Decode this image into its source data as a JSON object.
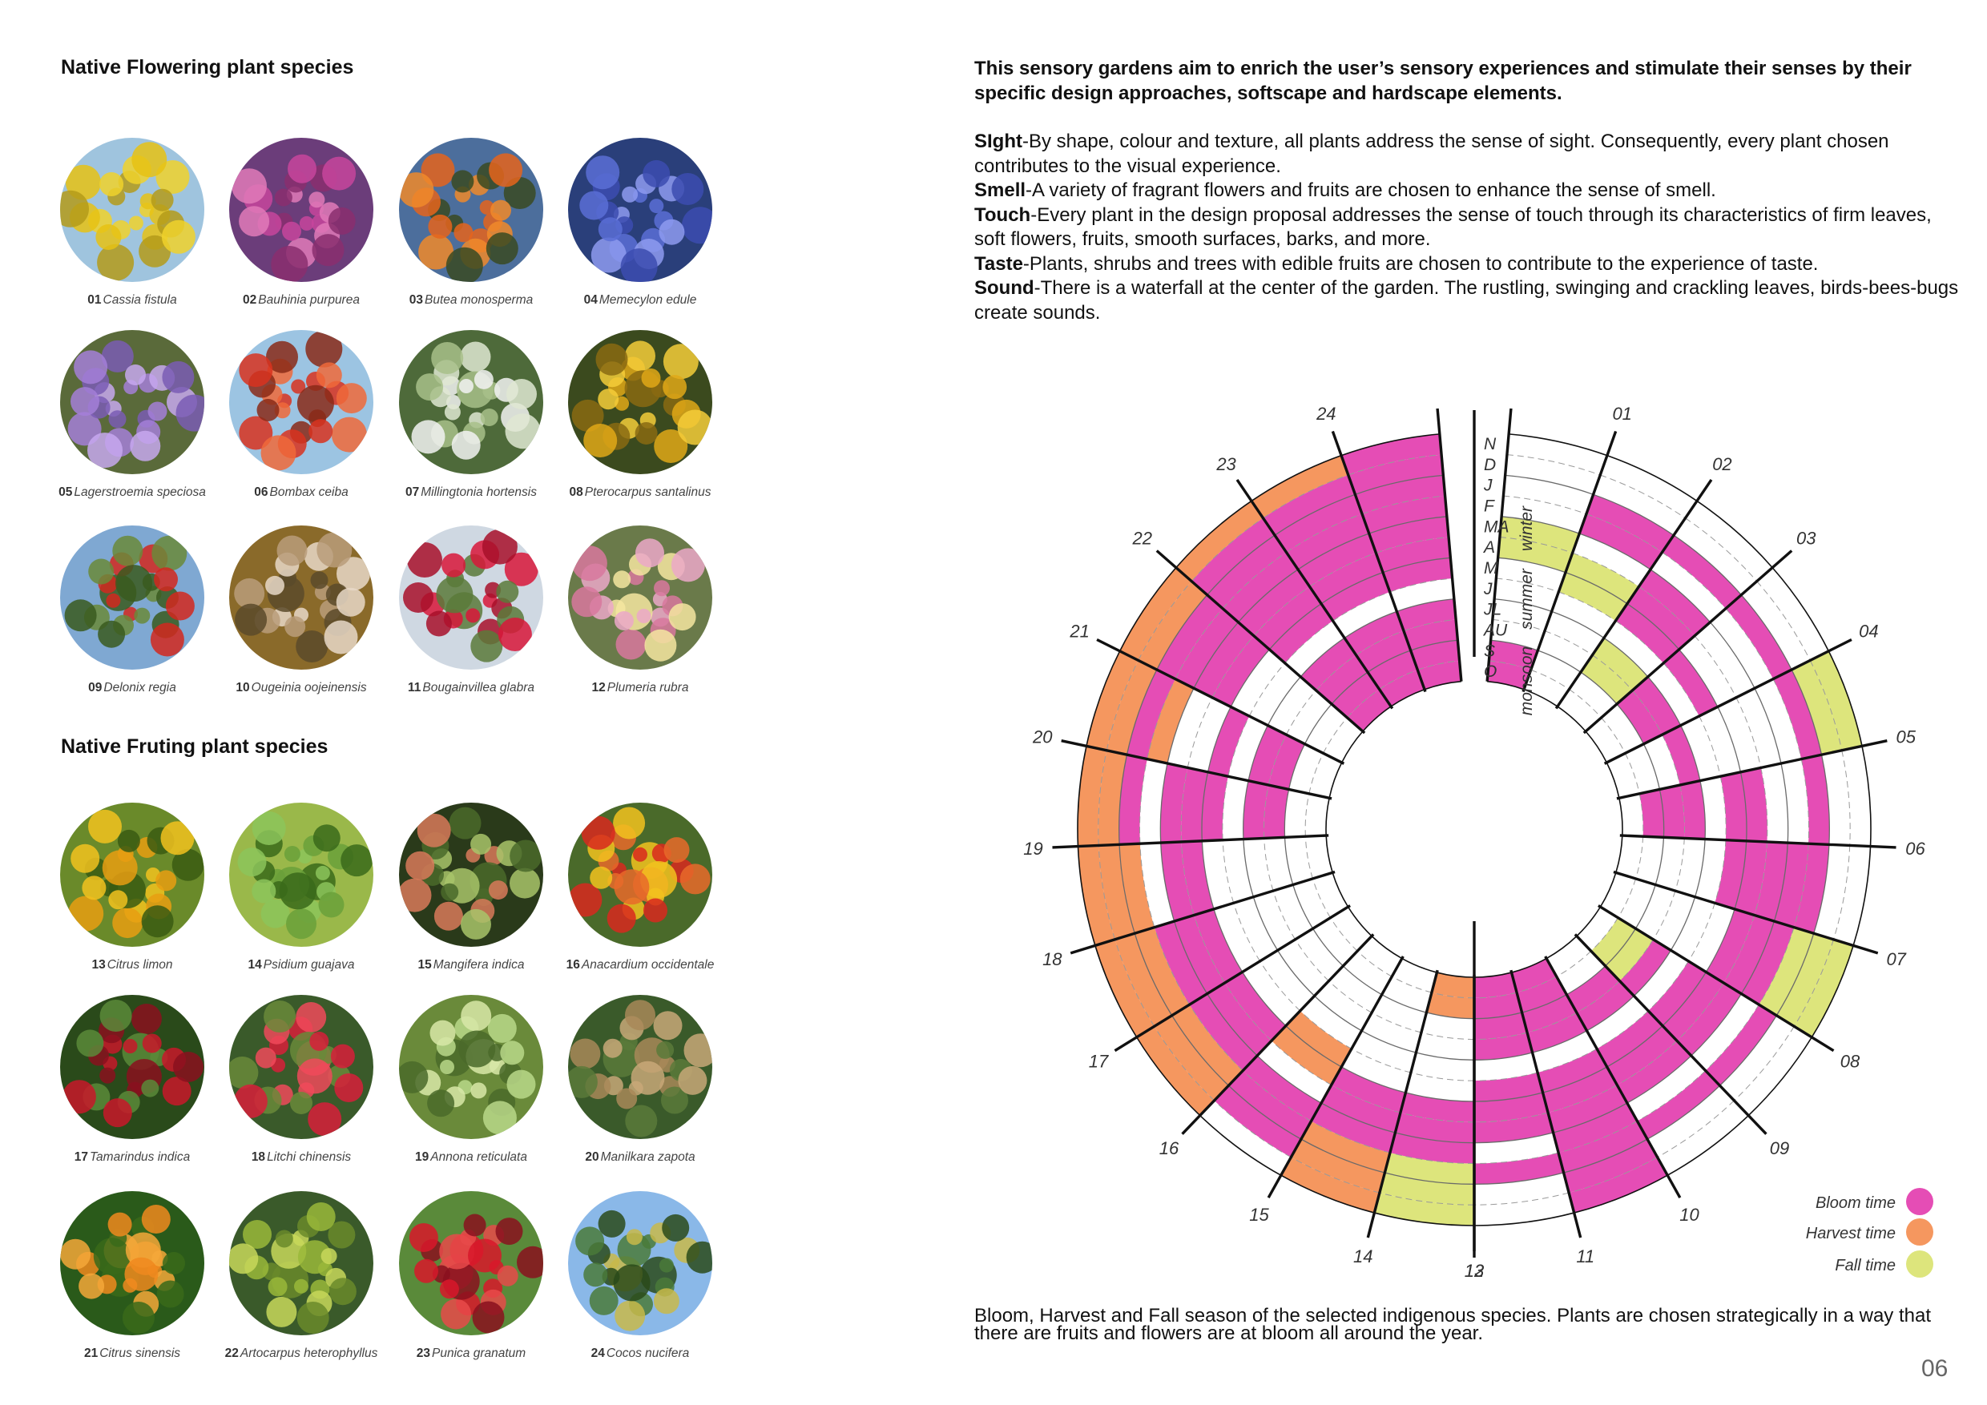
{
  "left": {
    "flowering_title": "Native Flowering plant species",
    "fruiting_title": "Native Fruting plant species",
    "flowering": [
      {
        "num": "01",
        "name": "Cassia fistula"
      },
      {
        "num": "02",
        "name": "Bauhinia purpurea"
      },
      {
        "num": "03",
        "name": "Butea monosperma"
      },
      {
        "num": "04",
        "name": "Memecylon edule"
      },
      {
        "num": "05",
        "name": "Lagerstroemia speciosa"
      },
      {
        "num": "06",
        "name": "Bombax ceiba"
      },
      {
        "num": "07",
        "name": "Millingtonia hortensis"
      },
      {
        "num": "08",
        "name": "Pterocarpus santalinus"
      },
      {
        "num": "09",
        "name": "Delonix regia"
      },
      {
        "num": "10",
        "name": "Ougeinia oojeinensis"
      },
      {
        "num": "11",
        "name": "Bougainvillea glabra"
      },
      {
        "num": "12",
        "name": "Plumeria rubra"
      }
    ],
    "fruiting": [
      {
        "num": "13",
        "name": "Citrus limon"
      },
      {
        "num": "14",
        "name": "Psidium guajava"
      },
      {
        "num": "15",
        "name": "Mangifera indica"
      },
      {
        "num": "16",
        "name": "Anacardium occidentale"
      },
      {
        "num": "17",
        "name": "Tamarindus indica"
      },
      {
        "num": "18",
        "name": "Litchi chinensis"
      },
      {
        "num": "19",
        "name": "Annona reticulata"
      },
      {
        "num": "20",
        "name": "Manilkara zapota"
      },
      {
        "num": "21",
        "name": "Citrus sinensis"
      },
      {
        "num": "22",
        "name": "Artocarpus heterophyllus"
      },
      {
        "num": "23",
        "name": "Punica granatum"
      },
      {
        "num": "24",
        "name": "Cocos nucifera"
      }
    ]
  },
  "right": {
    "intro": "This sensory gardens aim to enrich the user’s sensory experiences and stimulate their senses by their specific design approaches, softscape and hardscape elements.",
    "senses": [
      {
        "term": "SIght",
        "text": "-By shape, colour and texture, all plants address the sense of sight. Consequently, every plant chosen contributes to the visual experience."
      },
      {
        "term": "Smell",
        "text": "-A variety of fragrant flowers and fruits are chosen to enhance the sense of smell."
      },
      {
        "term": "Touch",
        "text": "-Every plant in the design proposal addresses the sense of touch through its characteristics of firm leaves, soft flowers, fruits, smooth surfaces, barks, and more."
      },
      {
        "term": "Taste",
        "text": "-Plants, shrubs and trees with edible fruits are chosen to contribute to the experience of taste."
      },
      {
        "term": "Sound",
        "text": "-There is a waterfall at the center of the garden. The rustling, swinging and crackling leaves, birds-bees-bugs create sounds."
      }
    ],
    "caption": "Bloom, Harvest and Fall season of the selected indigenous species. Plants are chosen strategically in a way that there are fruits and flowers are at bloom all around the year.",
    "page_number": "06"
  },
  "chart_data": {
    "type": "radial-calendar",
    "months_outer_to_inner": [
      "N",
      "D",
      "J",
      "F",
      "MA",
      "A",
      "M",
      "J",
      "JL",
      "AU",
      "S",
      "O"
    ],
    "seasons": [
      "winter",
      "summer",
      "monsoon"
    ],
    "legend": [
      {
        "label": "Bloom time",
        "color": "#e54db5"
      },
      {
        "label": "Harvest time",
        "color": "#f5975f"
      },
      {
        "label": "Fall time",
        "color": "#dde57c"
      }
    ],
    "species": [
      {
        "id": "01",
        "bloom": [
          "S",
          "O"
        ],
        "harvest": [],
        "fall": [
          "MA",
          "A"
        ]
      },
      {
        "id": "02",
        "bloom": [
          "J",
          "F"
        ],
        "harvest": [],
        "fall": [
          "A",
          "M"
        ]
      },
      {
        "id": "03",
        "bloom": [
          "MA",
          "A",
          "M",
          "J"
        ],
        "harvest": [],
        "fall": [
          "JL",
          "AU"
        ]
      },
      {
        "id": "04",
        "bloom": [
          "M",
          "J",
          "JL",
          "AU"
        ],
        "harvest": [],
        "fall": []
      },
      {
        "id": "05",
        "bloom": [
          "J",
          "JL"
        ],
        "harvest": [],
        "fall": [
          "N",
          "D",
          "J"
        ]
      },
      {
        "id": "06",
        "bloom": [
          "A",
          "M",
          "J",
          "JL",
          "AU",
          "S"
        ],
        "harvest": [],
        "fall": []
      },
      {
        "id": "07",
        "bloom": [
          "F",
          "MA",
          "A",
          "M",
          "J"
        ],
        "harvest": [],
        "fall": [
          "J",
          "F"
        ]
      },
      {
        "id": "08",
        "bloom": [
          "F",
          "MA",
          "A"
        ],
        "harvest": [],
        "fall": [
          "N",
          "D",
          "J"
        ]
      },
      {
        "id": "09",
        "bloom": [
          "MA",
          "A",
          "M",
          "J",
          "JL"
        ],
        "harvest": [],
        "fall": [
          "AU",
          "S"
        ]
      },
      {
        "id": "10",
        "bloom": [
          "MA",
          "A",
          "M",
          "J",
          "JL",
          "AU"
        ],
        "harvest": [],
        "fall": []
      },
      {
        "id": "11",
        "bloom": [
          "N",
          "D",
          "J",
          "F",
          "MA",
          "A",
          "M",
          "J",
          "JL",
          "AU",
          "S",
          "O"
        ],
        "harvest": [],
        "fall": []
      },
      {
        "id": "12",
        "bloom": [
          "MA",
          "A",
          "M",
          "J",
          "JL",
          "AU",
          "S",
          "O"
        ],
        "harvest": [],
        "fall": []
      },
      {
        "id": "13",
        "bloom": [
          "F",
          "MA",
          "A"
        ],
        "harvest": [
          "S",
          "O"
        ],
        "fall": [
          "N",
          "D",
          "J"
        ]
      },
      {
        "id": "14",
        "bloom": [
          "F",
          "MA",
          "A"
        ],
        "harvest": [
          "N",
          "D",
          "J"
        ],
        "fall": []
      },
      {
        "id": "15",
        "bloom": [
          "D",
          "J",
          "F"
        ],
        "harvest": [
          "A",
          "M",
          "J"
        ],
        "fall": []
      },
      {
        "id": "16",
        "bloom": [
          "F",
          "MA",
          "A"
        ],
        "harvest": [
          "N",
          "D",
          "J"
        ],
        "fall": []
      },
      {
        "id": "17",
        "bloom": [
          "F",
          "MA",
          "A"
        ],
        "harvest": [
          "N",
          "D",
          "J"
        ],
        "fall": []
      },
      {
        "id": "18",
        "bloom": [
          "MA",
          "A"
        ],
        "harvest": [
          "N",
          "D",
          "J"
        ],
        "fall": []
      },
      {
        "id": "19",
        "bloom": [
          "MA",
          "A",
          "M",
          "J",
          "JL",
          "AU"
        ],
        "harvest": [
          "N",
          "D",
          "J"
        ],
        "fall": []
      },
      {
        "id": "20",
        "bloom": [
          "M",
          "J",
          "JL",
          "AU"
        ],
        "harvest": [
          "N",
          "D",
          "J",
          "F"
        ],
        "fall": []
      },
      {
        "id": "21",
        "bloom": [
          "J",
          "F",
          "MA",
          "A"
        ],
        "harvest": [
          "N",
          "D"
        ],
        "fall": []
      },
      {
        "id": "22",
        "bloom": [
          "D",
          "J",
          "F",
          "MA",
          "A",
          "M",
          "J",
          "JL",
          "AU",
          "S",
          "O"
        ],
        "harvest": [
          "N"
        ],
        "fall": []
      },
      {
        "id": "23",
        "bloom": [
          "D",
          "J",
          "F",
          "MA",
          "A",
          "M",
          "J",
          "JL",
          "AU",
          "S",
          "O"
        ],
        "harvest": [
          "N"
        ],
        "fall": []
      },
      {
        "id": "24",
        "bloom": [
          "N",
          "D",
          "J",
          "F",
          "MA",
          "A",
          "M",
          "J",
          "JL",
          "AU",
          "S",
          "O"
        ],
        "harvest": [],
        "fall": []
      }
    ]
  }
}
